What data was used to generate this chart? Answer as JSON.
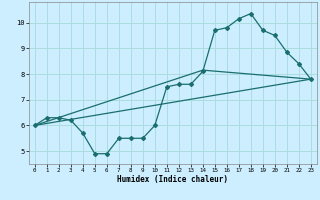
{
  "xlabel": "Humidex (Indice chaleur)",
  "background_color": "#cceeff",
  "grid_color": "#aadddd",
  "line_color": "#1a6e6e",
  "xlim": [
    -0.5,
    23.5
  ],
  "ylim": [
    4.5,
    10.8
  ],
  "xticks": [
    0,
    1,
    2,
    3,
    4,
    5,
    6,
    7,
    8,
    9,
    10,
    11,
    12,
    13,
    14,
    15,
    16,
    17,
    18,
    19,
    20,
    21,
    22,
    23
  ],
  "yticks": [
    5,
    6,
    7,
    8,
    9,
    10
  ],
  "series1_x": [
    0,
    1,
    2,
    3,
    4,
    5,
    6,
    7,
    8,
    9,
    10,
    11,
    12,
    13,
    14,
    15,
    16,
    17,
    18,
    19,
    20,
    21,
    22,
    23
  ],
  "series1_y": [
    6.0,
    6.3,
    6.3,
    6.2,
    5.7,
    4.9,
    4.9,
    5.5,
    5.5,
    5.5,
    6.0,
    7.5,
    7.6,
    7.6,
    8.1,
    9.7,
    9.8,
    10.15,
    10.35,
    9.7,
    9.5,
    8.85,
    8.4,
    7.8
  ],
  "series2_x": [
    0,
    23
  ],
  "series2_y": [
    6.0,
    7.8
  ],
  "series3_x": [
    0,
    14,
    23
  ],
  "series3_y": [
    6.0,
    8.15,
    7.8
  ]
}
